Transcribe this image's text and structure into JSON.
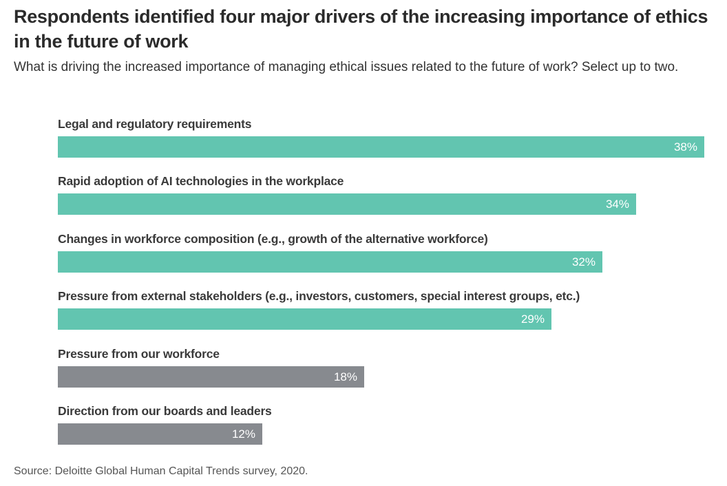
{
  "chart_data": {
    "type": "bar",
    "orientation": "horizontal",
    "title": "Respondents identified four major drivers of the increasing importance of ethics in the future of work",
    "subtitle": "What is driving the increased importance of managing ethical issues related to the future of work? Select up to two.",
    "categories": [
      "Legal and regulatory requirements",
      "Rapid adoption of AI technologies in the workplace",
      "Changes in workforce composition (e.g., growth of the alternative workforce)",
      "Pressure from external stakeholders (e.g., investors, customers, special interest groups, etc.)",
      "Pressure from our workforce",
      "Direction from our boards and leaders"
    ],
    "values": [
      38,
      34,
      32,
      29,
      18,
      12
    ],
    "value_labels": [
      "38%",
      "34%",
      "32%",
      "29%",
      "18%",
      "12%"
    ],
    "highlighted": [
      true,
      true,
      true,
      true,
      false,
      false
    ],
    "xlim": [
      0,
      38
    ],
    "source": "Source: Deloitte Global Human Capital Trends survey, 2020."
  },
  "colors": {
    "highlight": "#62c5b0",
    "muted": "#878a8f"
  }
}
